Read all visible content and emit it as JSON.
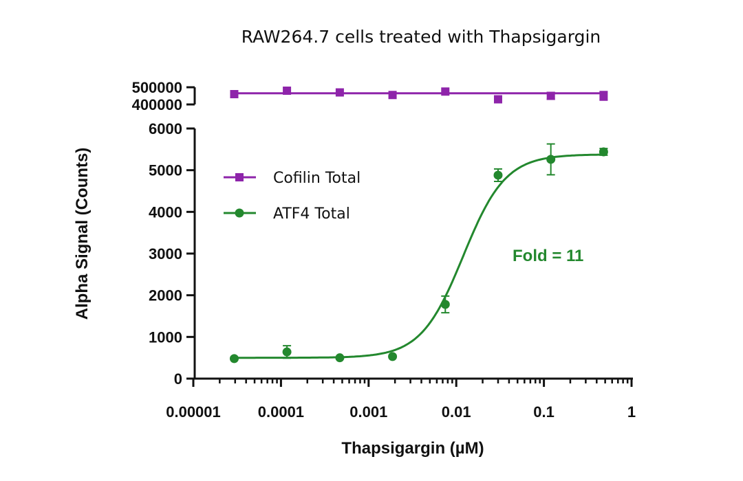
{
  "chart_data": {
    "type": "scatter",
    "title": "RAW264.7 cells treated with Thapsigargin",
    "xlabel": "Thapsigargin (µM)",
    "ylabel": "Alpha Signal (Counts)",
    "xscale": "log",
    "xlim": [
      1e-05,
      1
    ],
    "x_ticks": [
      "0.00001",
      "0.0001",
      "0.001",
      "0.01",
      "0.1",
      "1"
    ],
    "y_axis_broken": true,
    "ylim_lower": [
      0,
      6000
    ],
    "y_ticks_lower": [
      "0",
      "1000",
      "2000",
      "3000",
      "4000",
      "5000",
      "6000"
    ],
    "ylim_upper": [
      400000,
      500000
    ],
    "y_ticks_upper": [
      "400000",
      "500000"
    ],
    "grid": false,
    "legend_placement": "upper-left",
    "annotation": "Fold = 11",
    "series": [
      {
        "name": "Cofilin Total",
        "color": "#8e24aa",
        "marker": "square",
        "x": [
          2.93e-05,
          0.000117,
          0.000469,
          0.001875,
          0.0075,
          0.03,
          0.12,
          0.48
        ],
        "y": [
          460000,
          480000,
          470000,
          455000,
          475000,
          430000,
          450000,
          450000
        ],
        "error": [
          0,
          0,
          0,
          0,
          0,
          0,
          20000,
          25000
        ],
        "fit": {
          "type": "horizontal",
          "value": 465000
        }
      },
      {
        "name": "ATF4 Total",
        "color": "#23882e",
        "marker": "circle",
        "x": [
          2.93e-05,
          0.000117,
          0.000469,
          0.001875,
          0.0075,
          0.03,
          0.12,
          0.48
        ],
        "y": [
          480,
          640,
          500,
          530,
          1780,
          4880,
          5260,
          5440
        ],
        "error": [
          0,
          150,
          0,
          0,
          200,
          150,
          370,
          80
        ],
        "fit": {
          "type": "sigmoid",
          "bottom": 500,
          "top": 5380,
          "ec50": 0.012,
          "hill": 1.8
        }
      }
    ]
  }
}
